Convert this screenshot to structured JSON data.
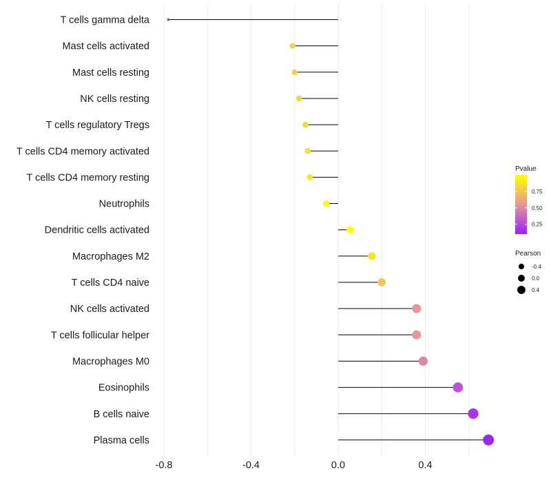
{
  "chart_data": {
    "type": "lollipop",
    "title": "",
    "xlabel": "",
    "ylabel": "",
    "xlim": [
      -0.82,
      0.72
    ],
    "x_ticks": [
      -0.8,
      -0.4,
      0.0,
      0.4
    ],
    "x_tick_labels": [
      "-0.8",
      "-0.4",
      "0.0",
      "0.4"
    ],
    "grid": true,
    "categories": [
      "T cells gamma delta",
      "Mast cells activated",
      "Mast cells resting",
      "NK cells resting",
      "T cells regulatory  Tregs",
      "T cells CD4 memory activated",
      "T cells CD4 memory resting",
      "Neutrophils",
      "Dendritic cells activated",
      "Macrophages M2",
      "T cells CD4 naive",
      "NK cells activated",
      "T cells follicular helper",
      "Macrophages M0",
      "Eosinophils",
      "B cells naive",
      "Plasma cells"
    ],
    "values": [
      -0.78,
      -0.21,
      -0.2,
      -0.18,
      -0.15,
      -0.14,
      -0.13,
      -0.055,
      0.055,
      0.155,
      0.2,
      0.36,
      0.36,
      0.39,
      0.55,
      0.62,
      0.69
    ],
    "pvalues": [
      0.02,
      0.8,
      0.8,
      0.82,
      0.85,
      0.88,
      0.9,
      1.0,
      1.0,
      0.88,
      0.75,
      0.55,
      0.55,
      0.5,
      0.3,
      0.18,
      0.12
    ],
    "colors": {
      "high": "#FFFF00",
      "mid": "#E7959A",
      "low": "#9B1FFF",
      "stem": "#000000",
      "grid": "#EBEBEB",
      "legend_dot": "#000000"
    },
    "legend_pvalue": {
      "title": "Pvalue",
      "range": [
        0.1,
        1.0
      ],
      "ticks": [
        0.75,
        0.5,
        0.25
      ],
      "tick_labels": [
        "0.75",
        "0.50",
        "0.25"
      ]
    },
    "legend_pearson": {
      "title": "Pearson",
      "entries": [
        {
          "label": "-0.4",
          "value": -0.4
        },
        {
          "label": "0.0",
          "value": 0.0
        },
        {
          "label": "0.4",
          "value": 0.4
        }
      ]
    }
  }
}
